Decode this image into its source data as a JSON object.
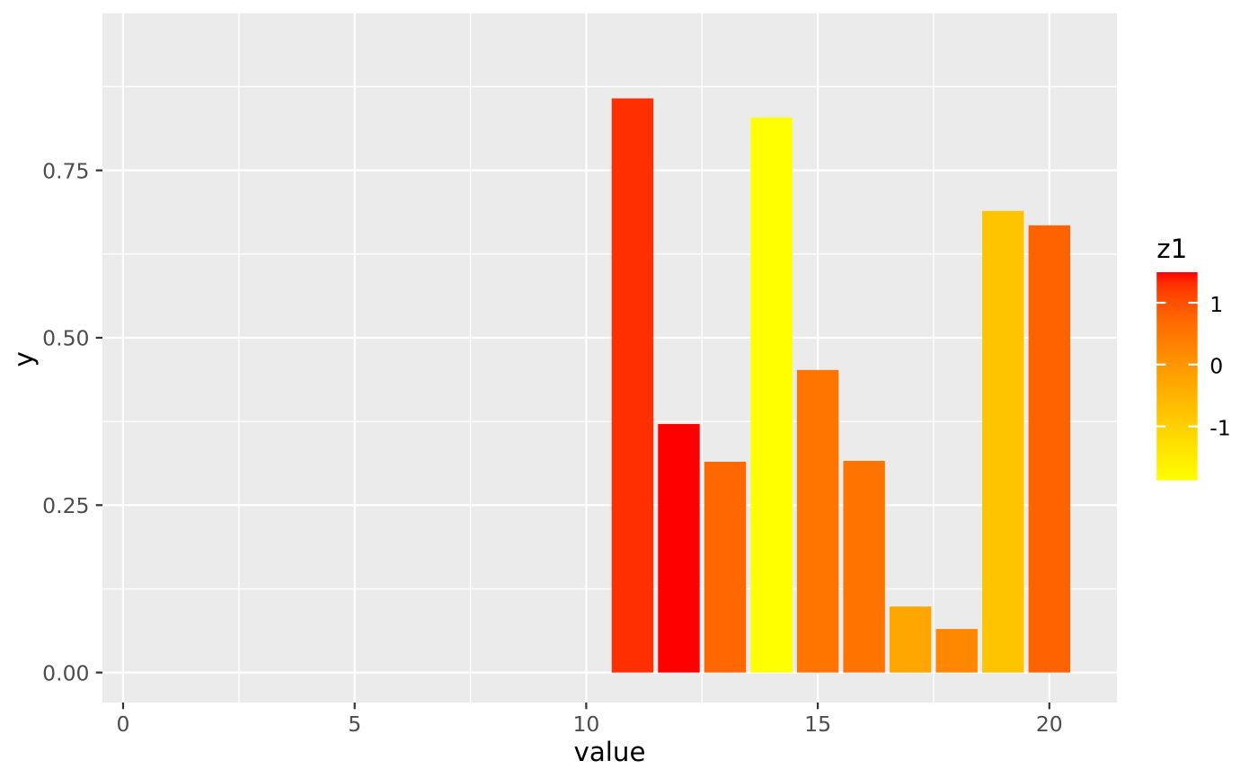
{
  "chart_data": {
    "type": "bar",
    "title": "",
    "xlabel": "value",
    "ylabel": "y",
    "legend_title": "z1",
    "x": [
      11,
      12,
      13,
      14,
      15,
      16,
      17,
      18,
      19,
      20
    ],
    "values": [
      0.8575,
      0.3711,
      0.3148,
      0.8289,
      0.4519,
      0.3161,
      0.0986,
      0.0651,
      0.6894,
      0.6679
    ],
    "series": [
      {
        "name": "z1",
        "values": [
          1.31,
          1.49,
          0.72,
          -1.87,
          0.52,
          0.55,
          -0.27,
          0.23,
          -0.8,
          0.77
        ]
      }
    ],
    "bar_width": 0.9,
    "x_domain": [
      -0.4463,
      21.459
    ],
    "y_domain": [
      -0.0448,
      0.9847
    ],
    "x_ticks": {
      "major": [
        0,
        5,
        10,
        15,
        20
      ],
      "labels": [
        "0",
        "5",
        "10",
        "15",
        "20"
      ],
      "minor": [
        2.5,
        7.5,
        12.5,
        17.5
      ]
    },
    "y_ticks": {
      "major": [
        0,
        0.25,
        0.5,
        0.75
      ],
      "labels": [
        "0.00",
        "0.25",
        "0.50",
        "0.75"
      ],
      "minor": [
        0.125,
        0.375,
        0.625,
        0.875
      ]
    },
    "legend": {
      "title": "z1",
      "domain": [
        -1.8736,
        1.4942
      ],
      "ticks": [
        1,
        0,
        -1
      ],
      "labels": [
        "1",
        "0",
        "-1"
      ]
    },
    "gradient_low": "#FFFF00",
    "gradient_high": "#FF0000",
    "gradient_stops": [
      "#FFFF00",
      "#FFF600",
      "#FFED00",
      "#FFE400",
      "#FFDB00",
      "#FFD100",
      "#FFC800",
      "#FFBF00",
      "#FFB500",
      "#FFAB00",
      "#FFA100",
      "#FF9700",
      "#FF8D00",
      "#FF8200",
      "#FF7700",
      "#FF6C00",
      "#FF5F00",
      "#FF5100",
      "#FF4100",
      "#FF2C00",
      "#FF0000"
    ],
    "bar_fills": [
      "#FF2F00",
      "#FF0000",
      "#FF6700",
      "#FFFF00",
      "#FF7500",
      "#FF7300",
      "#FFA600",
      "#FF8800",
      "#FFC400",
      "#FF6300"
    ],
    "grid": true,
    "legend_position": "right",
    "colors": {
      "background": "#FFFFFF",
      "panel_bg": "#EBEBEB",
      "gridline": "#FFFFFF",
      "tick_mark": "#333333",
      "tick_label": "#4D4D4D",
      "axis_title": "#000000",
      "legend_label": "#000000"
    }
  }
}
